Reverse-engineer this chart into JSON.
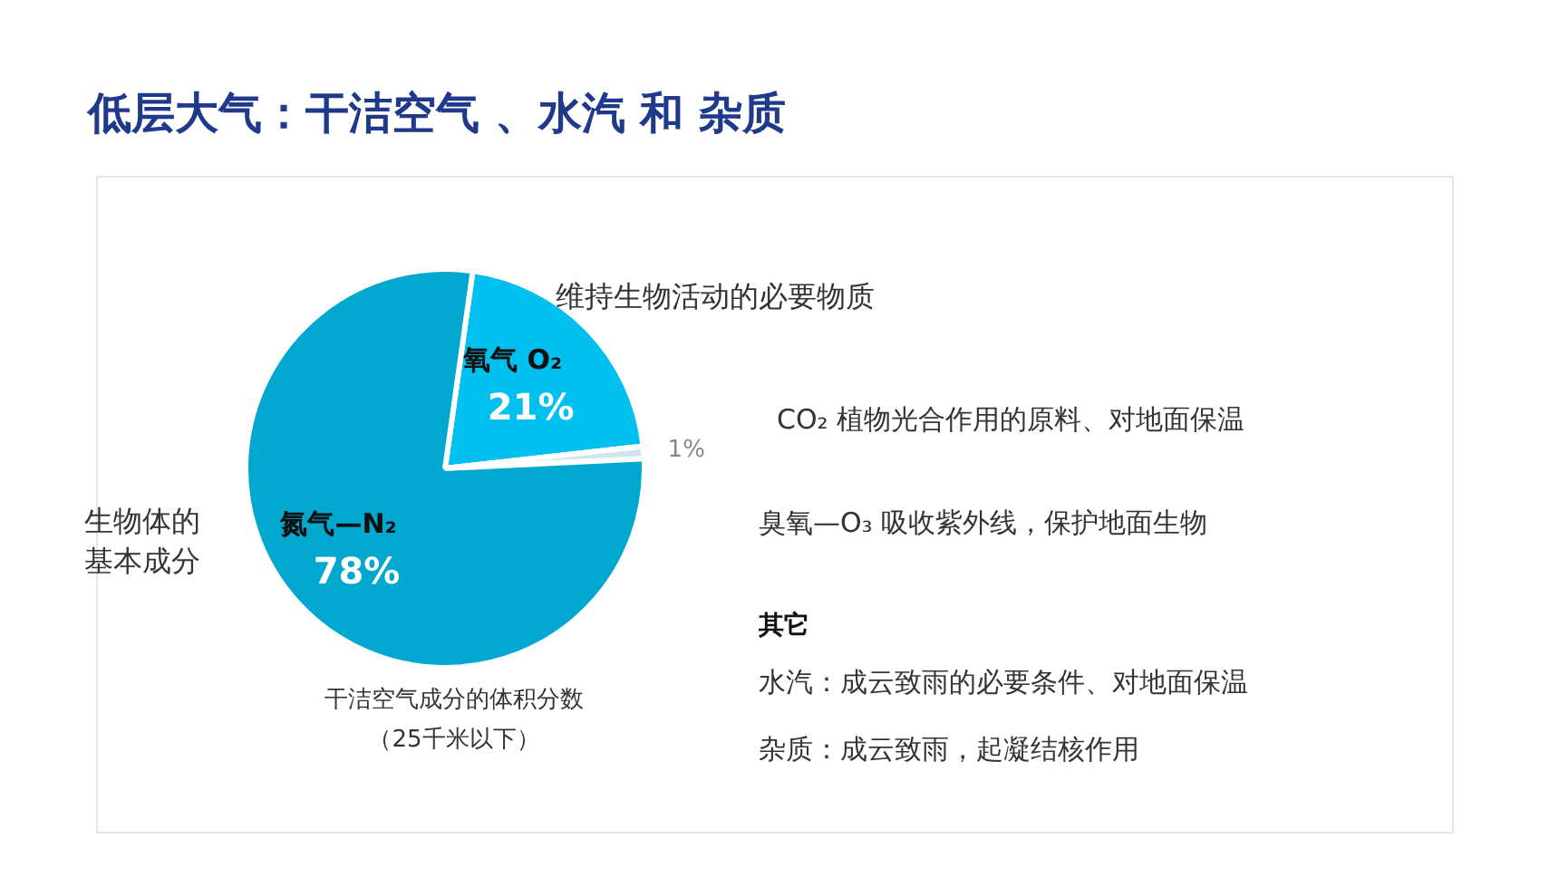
{
  "chart_data": {
    "type": "pie",
    "title": "低层大气：干洁空气 、水汽 和 杂质",
    "categories": [
      "氧气 O₂",
      null,
      "氮气—N₂"
    ],
    "values": [
      21,
      1,
      78
    ],
    "value_labels": [
      "21%",
      "1%",
      "78%"
    ],
    "colors": [
      "#00c0ef",
      "#cfe6ee",
      "#00a8d0"
    ],
    "annotations": [
      "维持生物活动的必要物质",
      "生物体的",
      "基本成分",
      "干洁空气成分的体积分数",
      "（25千米以下）",
      "CO₂   植物光合作用的原料、对地面保温",
      "臭氧—O₃   吸收紫外线，保护地面生物",
      "其它",
      "水汽：成云致雨的必要条件、对地面保温",
      "杂质：成云致雨，起凝结核作用"
    ]
  }
}
